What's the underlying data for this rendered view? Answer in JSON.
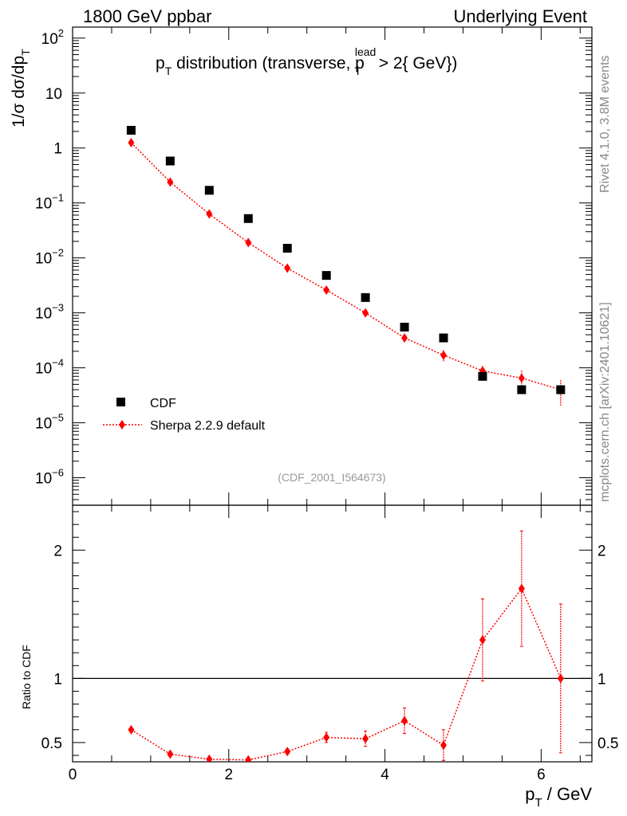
{
  "header": {
    "left": "1800 GeV ppbar",
    "right": "Underlying Event"
  },
  "side": {
    "rivet": "Rivet 4.1.0,  3.8M events",
    "mcplots": "mcplots.cern.ch [arXiv:2401.10621]"
  },
  "chart_data": [
    {
      "type": "scatter",
      "title": "p_T distribution (transverse, p_T^lead > 2{ GeV})",
      "title_parts": {
        "p": "p",
        "T": "T",
        "mid": " distribution (transverse, p",
        "lead": "lead",
        "T2": "T",
        "end": " > 2{ GeV})"
      },
      "ylabel_parts": {
        "pre": "1/σ  dσ/dp",
        "T": "T"
      },
      "yscale": "log",
      "ylim_exp": [
        -6.5,
        2.2
      ],
      "xlim": [
        0,
        6.65
      ],
      "annotation": "(CDF_2001_I564673)",
      "y_tick_labels": [
        {
          "exp": -6,
          "base": "10",
          "sup": "−6"
        },
        {
          "exp": -5,
          "base": "10",
          "sup": "−5"
        },
        {
          "exp": -4,
          "base": "10",
          "sup": "−4"
        },
        {
          "exp": -3,
          "base": "10",
          "sup": "−3"
        },
        {
          "exp": -2,
          "base": "10",
          "sup": "−2"
        },
        {
          "exp": -1,
          "base": "10",
          "sup": "−1"
        },
        {
          "exp": 0,
          "base": "1",
          "sup": ""
        },
        {
          "exp": 1,
          "base": "10",
          "sup": ""
        },
        {
          "exp": 2,
          "base": "10",
          "sup": "2"
        }
      ],
      "legend": {
        "placement": "bottom-left",
        "entries": [
          "CDF",
          "Sherpa 2.2.9 default"
        ]
      },
      "series": [
        {
          "name": "CDF",
          "marker": "square",
          "color": "#000000",
          "x": [
            0.75,
            1.25,
            1.75,
            2.25,
            2.75,
            3.25,
            3.75,
            4.25,
            4.75,
            5.25,
            5.75,
            6.25
          ],
          "y": [
            2.1,
            0.58,
            0.17,
            0.052,
            0.015,
            0.0048,
            0.0019,
            0.00055,
            0.00035,
            7e-05,
            4e-05,
            4e-05
          ]
        },
        {
          "name": "Sherpa 2.2.9 default",
          "marker": "diamond",
          "color": "#ff0000",
          "x": [
            0.75,
            1.25,
            1.75,
            2.25,
            2.75,
            3.25,
            3.75,
            4.25,
            4.75,
            5.25,
            5.75,
            6.25
          ],
          "y": [
            1.25,
            0.24,
            0.063,
            0.019,
            0.0065,
            0.0026,
            0.001,
            0.00035,
            0.00017,
            8.8e-05,
            6.5e-05,
            4e-05
          ],
          "err_up": [
            0.05,
            0.01,
            0.003,
            0.001,
            0.0004,
            0.0002,
            8e-05,
            4e-05,
            4e-05,
            2e-05,
            2.5e-05,
            2e-05
          ],
          "err_down": [
            0.05,
            0.01,
            0.003,
            0.001,
            0.0004,
            0.0002,
            8e-05,
            4e-05,
            4e-05,
            2e-05,
            2.5e-05,
            2e-05
          ]
        }
      ]
    },
    {
      "type": "scatter",
      "ylabel": "Ratio to CDF",
      "xlabel_parts": {
        "p": "p",
        "T": "T",
        "rest": " / GeV"
      },
      "yscale": "linear",
      "ylim": [
        0.35,
        2.35
      ],
      "xlim": [
        0,
        6.65
      ],
      "x_ticks": [
        0,
        2,
        4,
        6
      ],
      "x_tick_labels": [
        "0",
        "2",
        "4",
        "6"
      ],
      "y_ticks": [
        0.5,
        1,
        2
      ],
      "y_tick_labels": [
        "0.5",
        "1",
        "2"
      ],
      "reference_line": 1,
      "series": [
        {
          "name": "Sherpa 2.2.9 default",
          "marker": "diamond",
          "color": "#ff0000",
          "x": [
            0.75,
            1.25,
            1.75,
            2.25,
            2.75,
            3.25,
            3.75,
            4.25,
            4.75,
            5.25,
            5.75,
            6.25
          ],
          "y": [
            0.6,
            0.41,
            0.37,
            0.365,
            0.43,
            0.54,
            0.53,
            0.67,
            0.48,
            1.3,
            1.7,
            1.0
          ],
          "err_up": [
            0.01,
            0.005,
            0.005,
            0.005,
            0.02,
            0.04,
            0.06,
            0.1,
            0.12,
            0.32,
            0.45,
            0.58
          ],
          "err_down": [
            0.01,
            0.005,
            0.005,
            0.005,
            0.02,
            0.04,
            0.06,
            0.1,
            0.12,
            0.32,
            0.45,
            0.58
          ]
        }
      ]
    }
  ]
}
